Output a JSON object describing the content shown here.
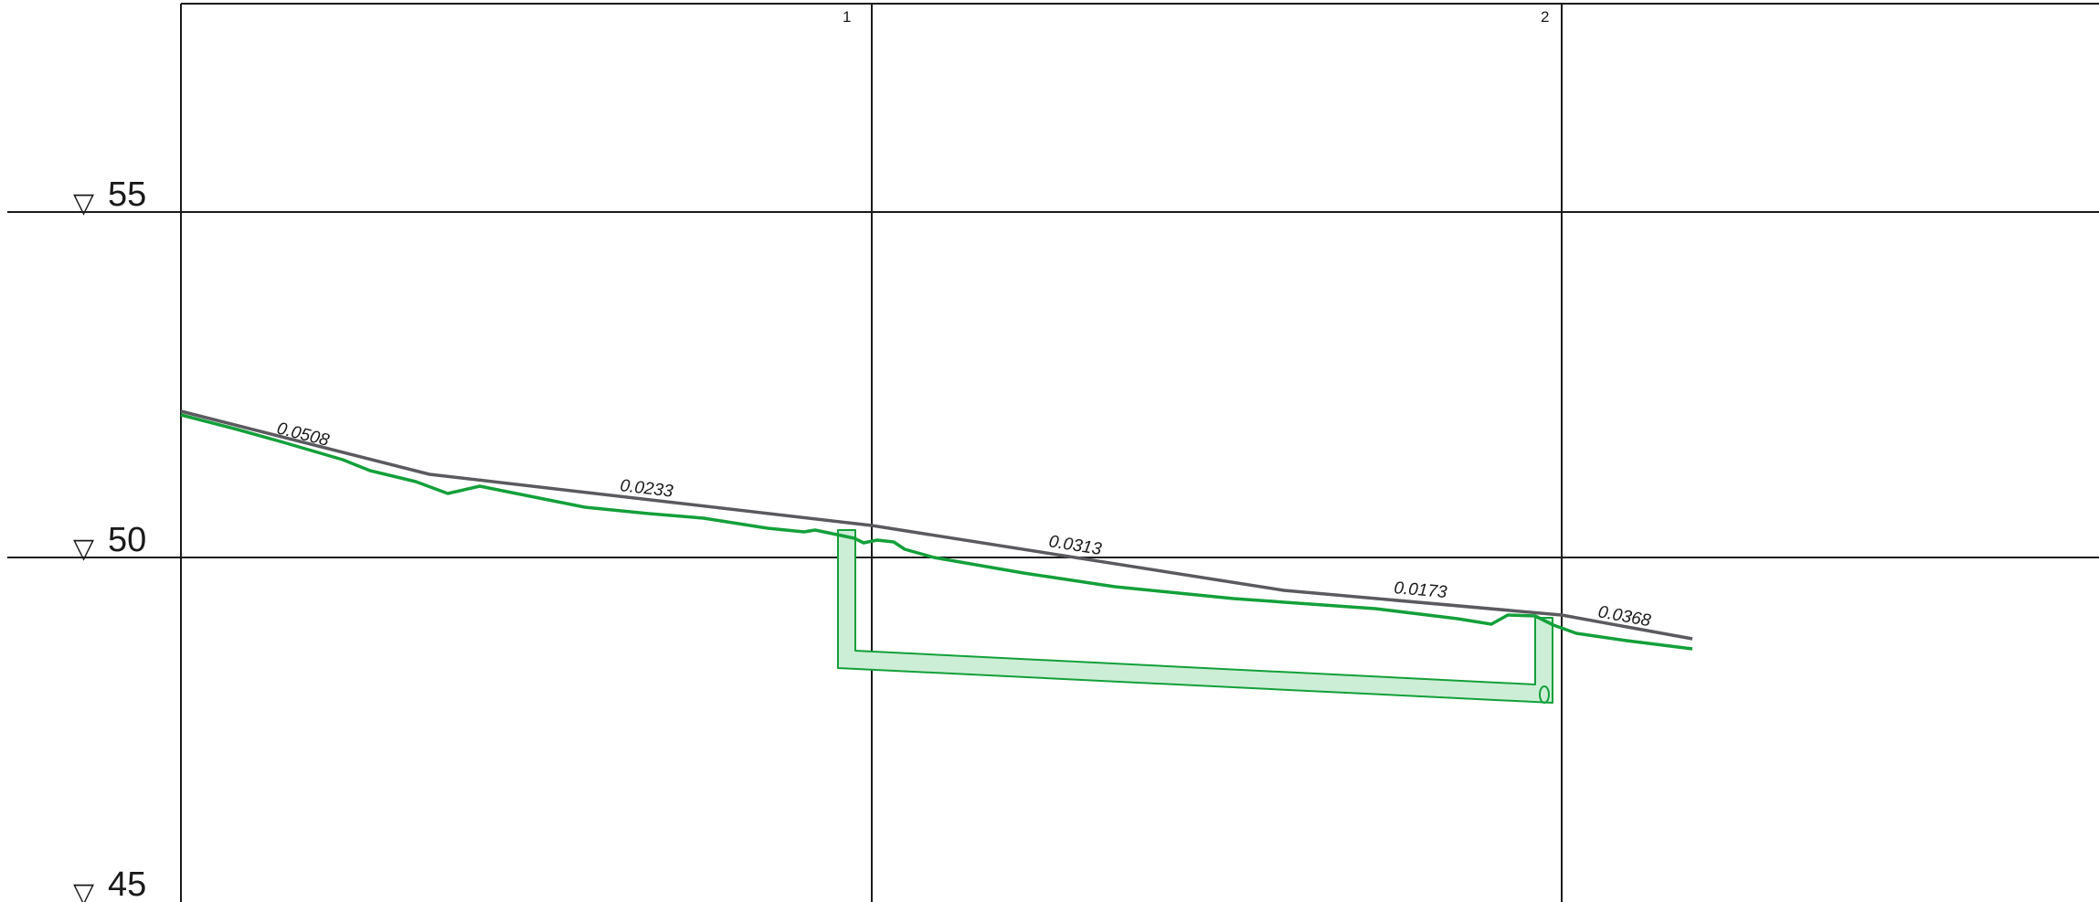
{
  "elevation_marks": [
    {
      "symbol": "▽",
      "label": "55",
      "value": 55
    },
    {
      "symbol": "▽",
      "label": "50",
      "value": 50
    },
    {
      "symbol": "▽",
      "label": "45",
      "value": 45
    }
  ],
  "stations": [
    {
      "label": "1"
    },
    {
      "label": "2"
    }
  ],
  "slope_labels": [
    "0.0508",
    "0.0233",
    "0.0313",
    "0.0173",
    "0.0368"
  ],
  "colors": {
    "grid": "#1a1a1a",
    "design_line": "#5a5a5f",
    "ground_line": "#13a03a",
    "structure_stroke": "#13a03a",
    "structure_fill": "#cdeed6"
  }
}
